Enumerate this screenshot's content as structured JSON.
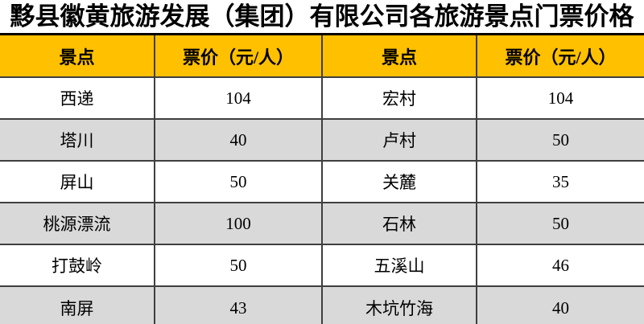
{
  "title": "黟县徽黄旅游发展（集团）有限公司各旅游景点门票价格",
  "colors": {
    "header_bg": "#FFC000",
    "row_bg": "#FFFFFF",
    "row_alt_bg": "#D9D9D9",
    "border": "#3F3F3F",
    "top_border": "#000000",
    "text": "#000000"
  },
  "table": {
    "headers": [
      "景点",
      "票价（元/人）",
      "景点",
      "票价（元/人）"
    ],
    "rows": [
      [
        "西递",
        "104",
        "宏村",
        "104"
      ],
      [
        "塔川",
        "40",
        "卢村",
        "50"
      ],
      [
        "屏山",
        "50",
        "关麓",
        "35"
      ],
      [
        "桃源漂流",
        "100",
        "石林",
        "50"
      ],
      [
        "打鼓岭",
        "50",
        "五溪山",
        "46"
      ],
      [
        "南屏",
        "43",
        "木坑竹海",
        "40"
      ]
    ]
  }
}
